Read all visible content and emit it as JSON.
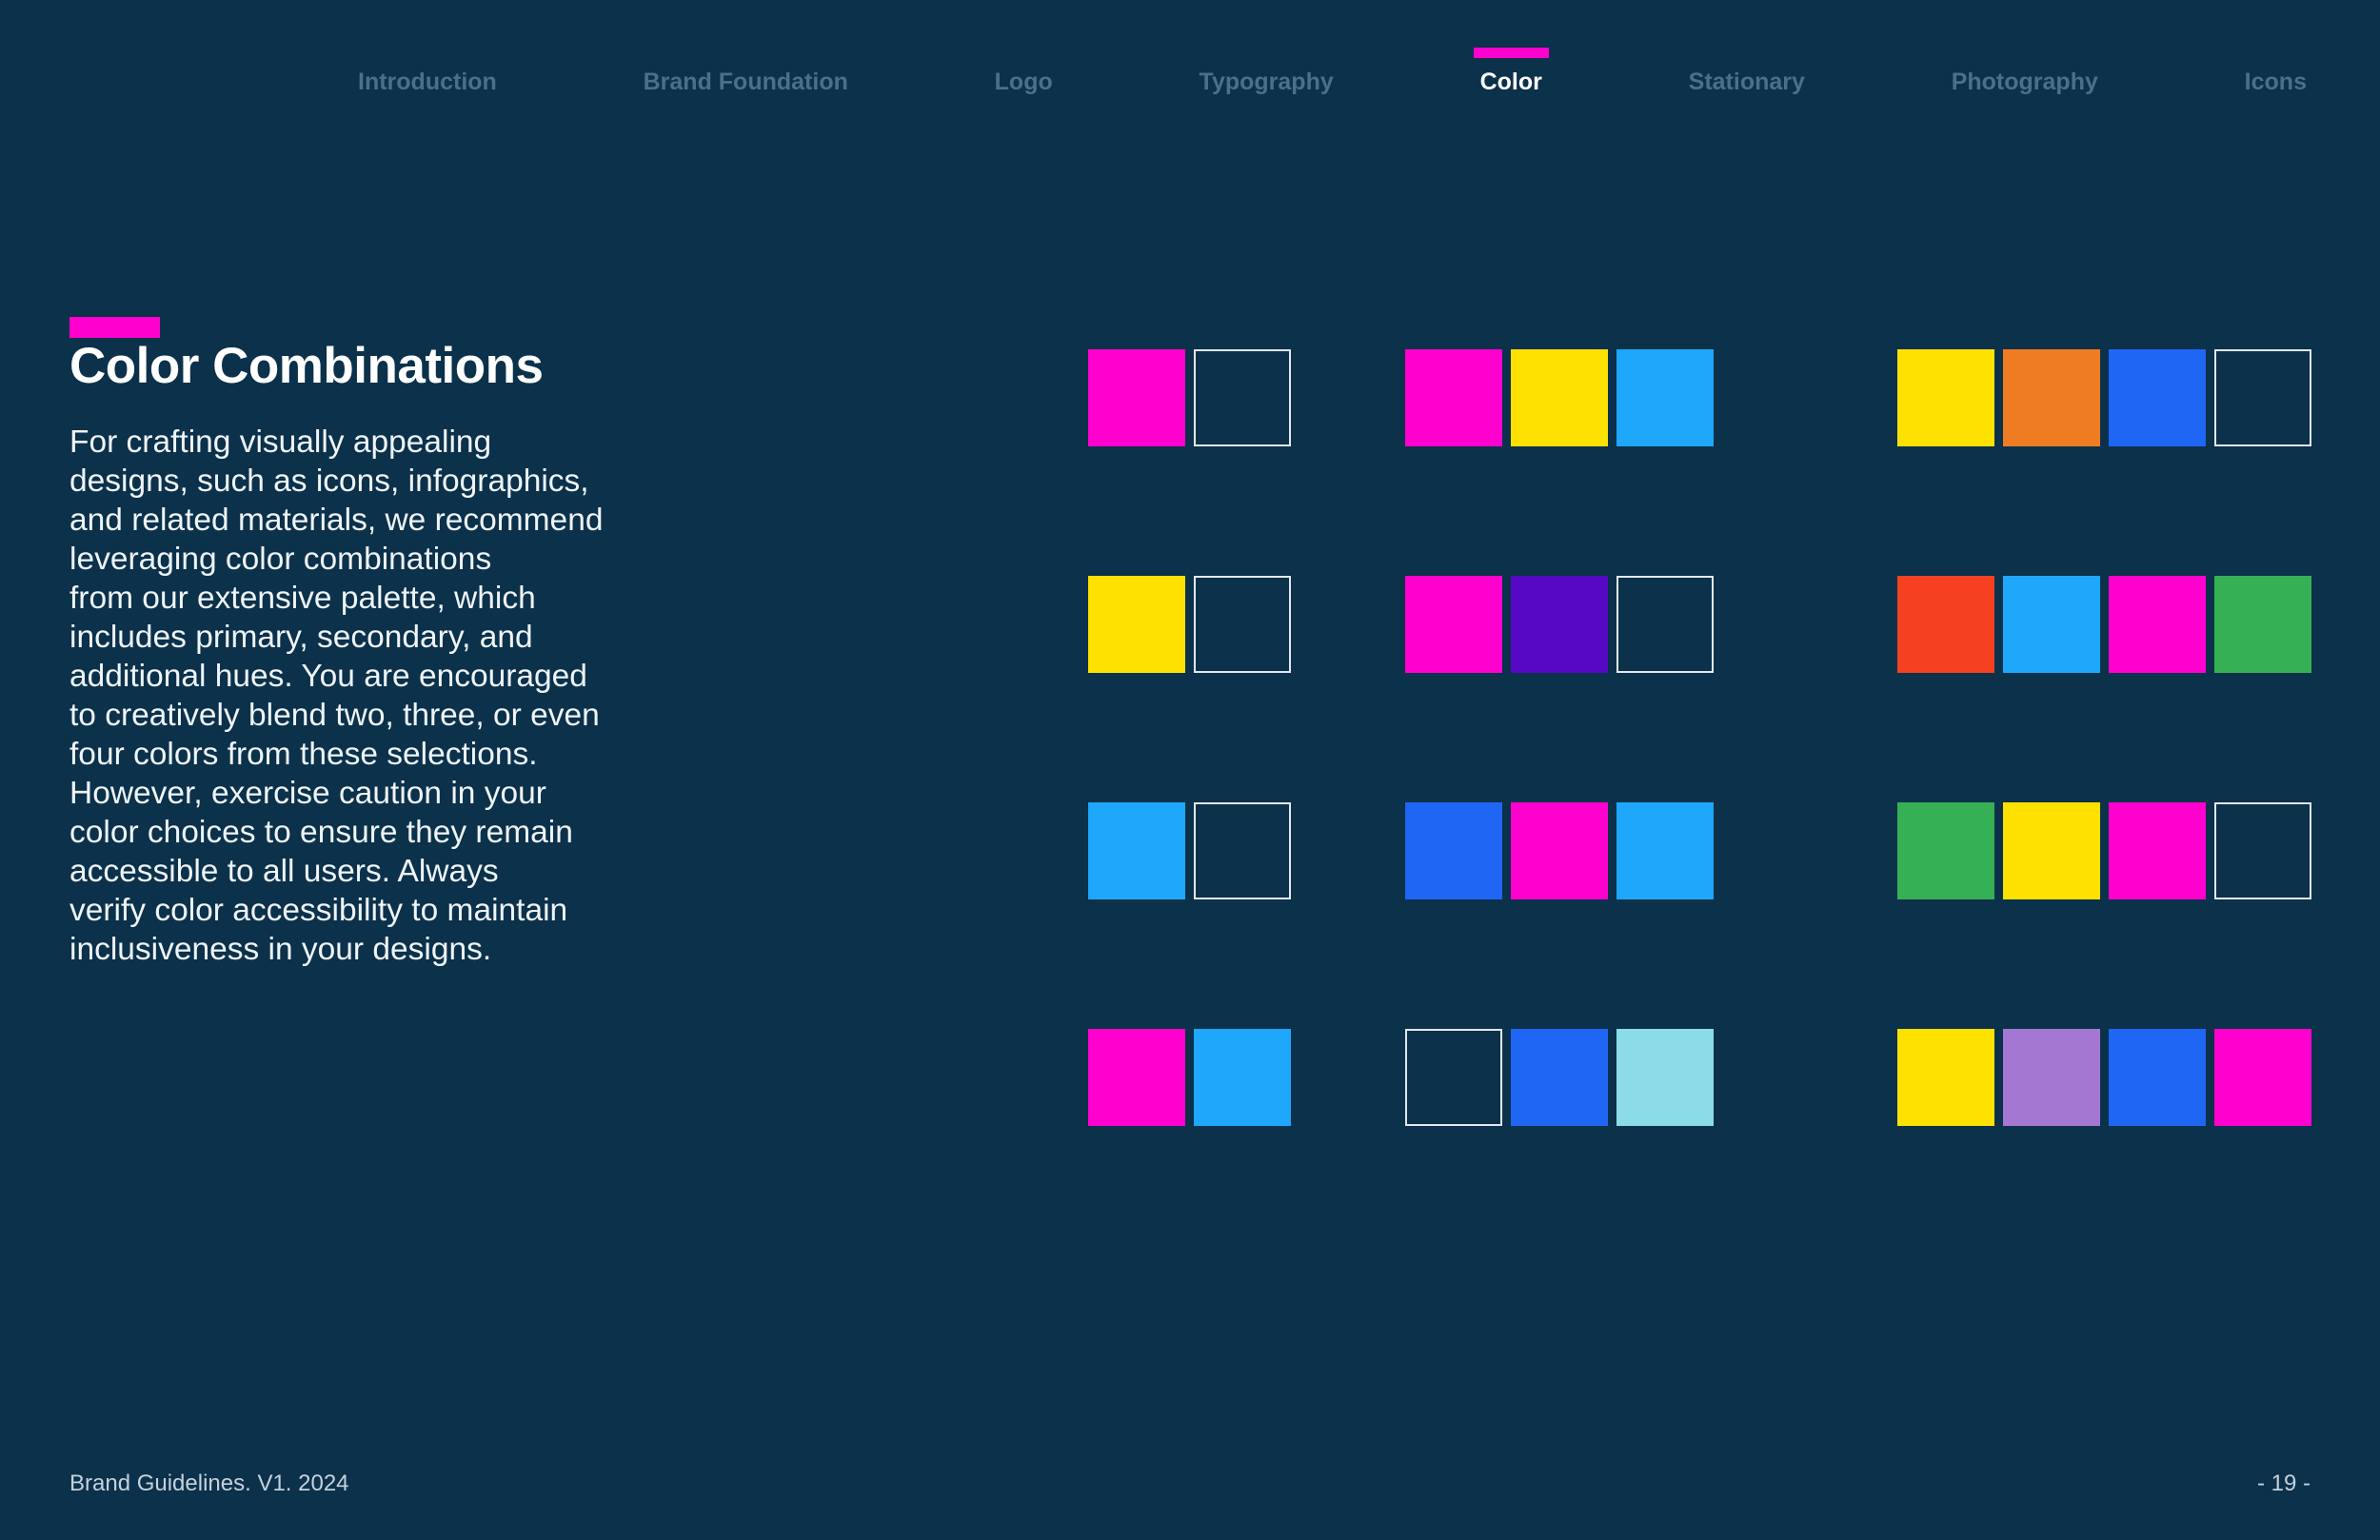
{
  "colors": {
    "background": "#0B314B",
    "accent": "#FF00CE",
    "nav_inactive_text": "#4A7186",
    "nav_active_text": "#FFFFFF",
    "title_text": "#FFFFFF",
    "body_text": "#EFF4F7",
    "footer_text": "#C6D1DA",
    "empty_swatch_border": "#E2E7F2"
  },
  "palette": {
    "magenta": "#FF00CE",
    "yellow": "#FFE100",
    "sky-blue": "#1EA7FB",
    "royal-blue": "#1F66F4",
    "violet": "#5708C4",
    "orange": "#EF7C23",
    "red": "#F54122",
    "green": "#36B054",
    "pale-cyan": "#8BDCE8",
    "lavender": "#A478D2"
  },
  "nav": {
    "items": [
      {
        "label": "Introduction",
        "active": false
      },
      {
        "label": "Brand Foundation",
        "active": false
      },
      {
        "label": "Logo",
        "active": false
      },
      {
        "label": "Typography",
        "active": false
      },
      {
        "label": "Color",
        "active": true
      },
      {
        "label": "Stationary",
        "active": false
      },
      {
        "label": "Photography",
        "active": false
      },
      {
        "label": "Icons",
        "active": false
      }
    ]
  },
  "content": {
    "title": "Color Combinations",
    "body": "For crafting visually appealing\ndesigns, such as icons, infographics,\nand related materials, we recommend\nleveraging color combinations\nfrom our extensive palette, which\nincludes primary, secondary, and\nadditional hues. You are encouraged\nto creatively blend two, three, or even\nfour colors from these selections.\nHowever, exercise caution in your\ncolor choices to ensure they remain\naccessible to all users. Always\nverify color accessibility to maintain\ninclusiveness in your designs."
  },
  "swatch_grid": {
    "columns": [
      {
        "rows": [
          [
            "magenta",
            "outline"
          ],
          [
            "yellow",
            "outline"
          ],
          [
            "sky-blue",
            "outline"
          ],
          [
            "magenta",
            "sky-blue"
          ]
        ]
      },
      {
        "rows": [
          [
            "magenta",
            "yellow",
            "sky-blue"
          ],
          [
            "magenta",
            "violet",
            "outline"
          ],
          [
            "royal-blue",
            "magenta",
            "sky-blue"
          ],
          [
            "outline",
            "royal-blue",
            "pale-cyan"
          ]
        ]
      },
      {
        "rows": [
          [
            "yellow",
            "orange",
            "royal-blue",
            "outline"
          ],
          [
            "red",
            "sky-blue",
            "magenta",
            "green"
          ],
          [
            "green",
            "yellow",
            "magenta",
            "outline"
          ],
          [
            "yellow",
            "lavender",
            "royal-blue",
            "magenta"
          ]
        ]
      }
    ]
  },
  "footer": {
    "left": "Brand Guidelines. V1. 2024",
    "right": "- 19 -"
  }
}
